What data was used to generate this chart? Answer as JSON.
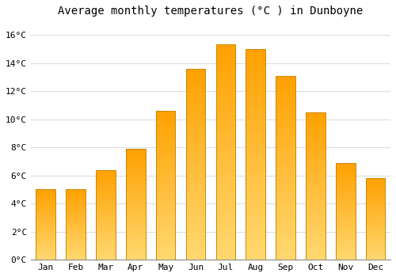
{
  "title": "Average monthly temperatures (°C ) in Dunboyne",
  "categories": [
    "Jan",
    "Feb",
    "Mar",
    "Apr",
    "May",
    "Jun",
    "Jul",
    "Aug",
    "Sep",
    "Oct",
    "Nov",
    "Dec"
  ],
  "values": [
    5.0,
    5.0,
    6.4,
    7.9,
    10.6,
    13.6,
    15.3,
    15.0,
    13.1,
    10.5,
    6.9,
    5.8
  ],
  "bar_color": "#FFA500",
  "bar_edge_color": "#CC7700",
  "bar_bottom_color": "#FFD580",
  "ylim": [
    0,
    17
  ],
  "yticks": [
    0,
    2,
    4,
    6,
    8,
    10,
    12,
    14,
    16
  ],
  "background_color": "#FFFFFF",
  "grid_color": "#DDDDDD",
  "title_fontsize": 10,
  "tick_fontsize": 8,
  "font_family": "monospace"
}
